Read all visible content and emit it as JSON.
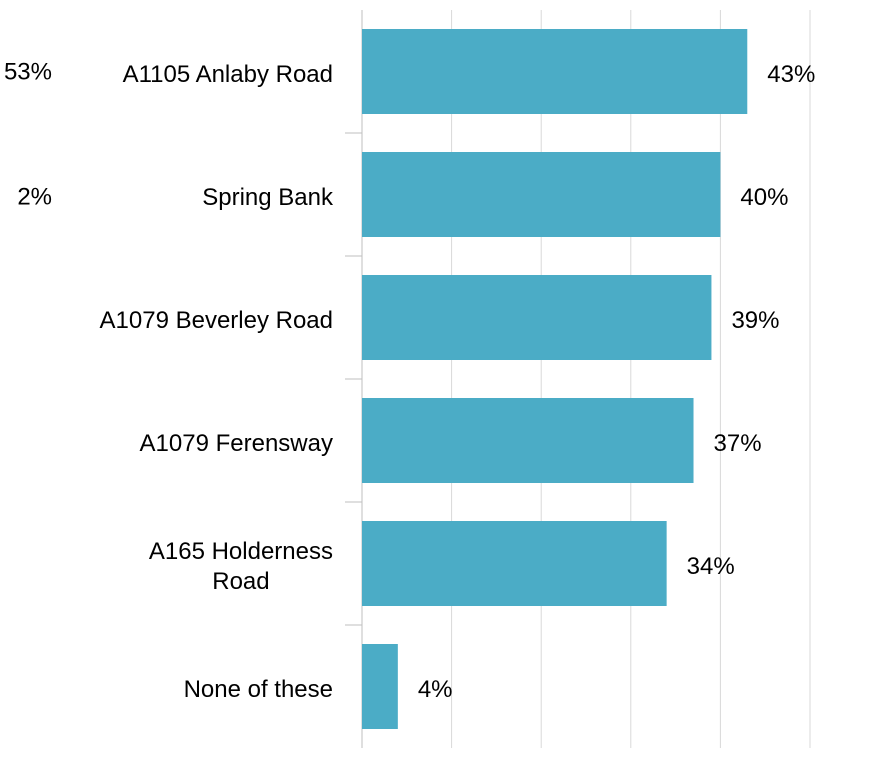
{
  "chart_data": {
    "type": "bar",
    "orientation": "horizontal",
    "categories": [
      "A1105 Anlaby Road",
      "Spring Bank",
      "A1079 Beverley Road",
      "A1079 Ferensway",
      "A165 Holderness\nRoad",
      "None of these"
    ],
    "values": [
      43,
      40,
      39,
      37,
      34,
      4
    ],
    "value_labels": [
      "43%",
      "40%",
      "39%",
      "37%",
      "34%",
      "4%"
    ],
    "color": "#4bacc6",
    "xlim": [
      0,
      50
    ],
    "xticks": [
      0,
      10,
      20,
      30,
      40,
      50
    ],
    "grid": true,
    "annotations": [
      "53%",
      "2%"
    ]
  }
}
